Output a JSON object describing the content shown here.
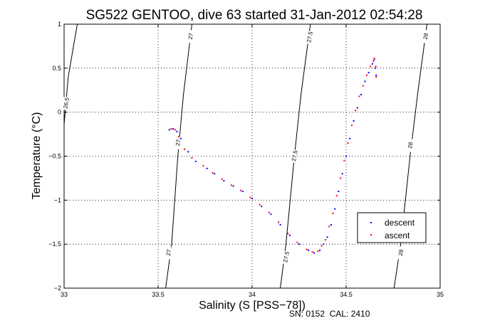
{
  "chart_data": {
    "type": "scatter",
    "title": "SG522 GENTOO, dive 63 started 31-Jan-2012 02:54:28",
    "xlabel": "Salinity (S [PSS−78])",
    "ylabel": "Temperature (°C)",
    "xlim": [
      33,
      35
    ],
    "ylim": [
      -2,
      1
    ],
    "x_ticks": [
      33,
      33.5,
      34,
      34.5,
      35
    ],
    "x_tick_labels": [
      "33",
      "33.5",
      "34",
      "34.5",
      "35"
    ],
    "y_ticks": [
      -2,
      -1.5,
      -1,
      -0.5,
      0,
      0.5,
      1
    ],
    "y_tick_labels": [
      "−2",
      "−1.5",
      "−1",
      "−0.5",
      "0",
      "0.5",
      "1"
    ],
    "grid": true,
    "grid_style": "dotted",
    "legend_position": "lower-right",
    "footer": "SN: 0152  CAL: 2410",
    "colors": {
      "descent": "#0000ff",
      "ascent": "#ff0000",
      "contour": "#000000"
    },
    "contours": [
      {
        "label": "26.5",
        "line": [
          [
            33,
            -0.14
          ],
          [
            33.022,
            0.4
          ],
          [
            33.07,
            1.0
          ]
        ],
        "labels_at": [
          [
            33.01,
            0.1
          ]
        ]
      },
      {
        "label": "27",
        "line": [
          [
            33.54,
            -2.0
          ],
          [
            33.572,
            -1.5
          ],
          [
            33.605,
            -0.5
          ],
          [
            33.635,
            0.2
          ],
          [
            33.68,
            1.0
          ]
        ],
        "labels_at": [
          [
            33.555,
            -1.6
          ],
          [
            33.605,
            -0.35
          ],
          [
            33.672,
            0.86
          ]
        ]
      },
      {
        "label": "27.5",
        "line": [
          [
            34.15,
            -2.0
          ],
          [
            34.18,
            -1.5
          ],
          [
            34.225,
            -0.5
          ],
          [
            34.26,
            0.2
          ],
          [
            34.31,
            1.0
          ]
        ],
        "labels_at": [
          [
            34.18,
            -1.65
          ],
          [
            34.225,
            -0.5
          ],
          [
            34.305,
            0.85
          ]
        ]
      },
      {
        "label": "28",
        "line": [
          [
            34.755,
            -2.0
          ],
          [
            34.79,
            -1.5
          ],
          [
            34.84,
            -0.5
          ],
          [
            34.88,
            0.2
          ],
          [
            34.93,
            1.0
          ]
        ],
        "labels_at": [
          [
            34.79,
            -1.6
          ],
          [
            34.84,
            -0.38
          ],
          [
            34.922,
            0.86
          ]
        ]
      }
    ],
    "series": [
      {
        "name": "descent",
        "points": [
          [
            33.56,
            -0.2
          ],
          [
            33.58,
            -0.19
          ],
          [
            33.6,
            -0.22
          ],
          [
            33.62,
            -0.3
          ],
          [
            33.66,
            -0.45
          ],
          [
            33.7,
            -0.56
          ],
          [
            33.76,
            -0.64
          ],
          [
            33.8,
            -0.7
          ],
          [
            33.85,
            -0.78
          ],
          [
            33.9,
            -0.84
          ],
          [
            33.95,
            -0.9
          ],
          [
            34.0,
            -0.98
          ],
          [
            34.05,
            -1.07
          ],
          [
            34.1,
            -1.16
          ],
          [
            34.15,
            -1.28
          ],
          [
            34.2,
            -1.4
          ],
          [
            34.25,
            -1.5
          ],
          [
            34.3,
            -1.57
          ],
          [
            34.33,
            -1.6
          ],
          [
            34.36,
            -1.57
          ],
          [
            34.38,
            -1.5
          ],
          [
            34.4,
            -1.42
          ],
          [
            34.42,
            -1.28
          ],
          [
            34.44,
            -1.1
          ],
          [
            34.46,
            -0.9
          ],
          [
            34.48,
            -0.7
          ],
          [
            34.5,
            -0.5
          ],
          [
            34.52,
            -0.3
          ],
          [
            34.54,
            -0.1
          ],
          [
            34.56,
            0.05
          ],
          [
            34.58,
            0.2
          ],
          [
            34.6,
            0.35
          ],
          [
            34.62,
            0.45
          ],
          [
            34.64,
            0.55
          ],
          [
            34.65,
            0.6
          ],
          [
            34.655,
            0.5
          ],
          [
            34.66,
            0.42
          ]
        ]
      },
      {
        "name": "ascent",
        "points": [
          [
            33.57,
            -0.19
          ],
          [
            33.59,
            -0.2
          ],
          [
            33.61,
            -0.28
          ],
          [
            33.64,
            -0.42
          ],
          [
            33.68,
            -0.52
          ],
          [
            33.74,
            -0.61
          ],
          [
            33.79,
            -0.69
          ],
          [
            33.84,
            -0.76
          ],
          [
            33.89,
            -0.83
          ],
          [
            33.94,
            -0.89
          ],
          [
            33.99,
            -0.97
          ],
          [
            34.04,
            -1.05
          ],
          [
            34.09,
            -1.14
          ],
          [
            34.14,
            -1.25
          ],
          [
            34.19,
            -1.38
          ],
          [
            34.24,
            -1.48
          ],
          [
            34.29,
            -1.56
          ],
          [
            34.32,
            -1.59
          ],
          [
            34.35,
            -1.58
          ],
          [
            34.37,
            -1.52
          ],
          [
            34.39,
            -1.45
          ],
          [
            34.41,
            -1.3
          ],
          [
            34.43,
            -1.15
          ],
          [
            34.45,
            -0.95
          ],
          [
            34.47,
            -0.75
          ],
          [
            34.49,
            -0.55
          ],
          [
            34.51,
            -0.35
          ],
          [
            34.53,
            -0.15
          ],
          [
            34.55,
            0.02
          ],
          [
            34.57,
            0.18
          ],
          [
            34.59,
            0.3
          ],
          [
            34.61,
            0.42
          ],
          [
            34.63,
            0.52
          ],
          [
            34.645,
            0.58
          ],
          [
            34.65,
            0.61
          ],
          [
            34.658,
            0.52
          ],
          [
            34.66,
            0.4
          ]
        ]
      }
    ]
  }
}
